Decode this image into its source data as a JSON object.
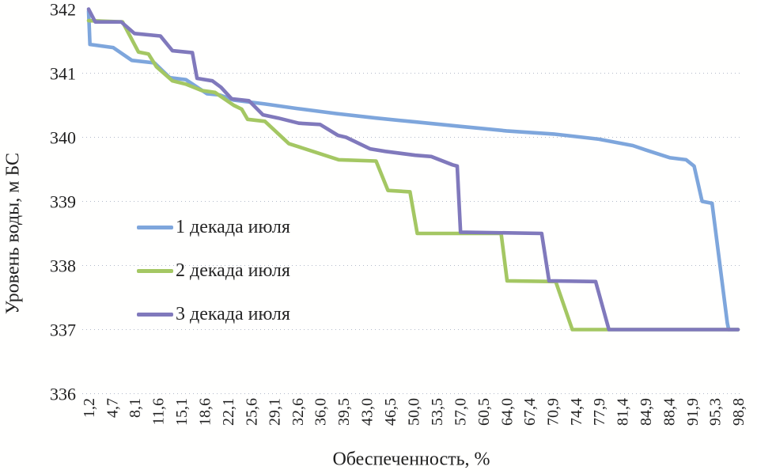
{
  "chart_data": {
    "type": "line",
    "title": "",
    "xlabel": "Обеспеченность, %",
    "ylabel": "Уровень воды, м БС",
    "x_range": [
      1.2,
      98.8
    ],
    "y_range": [
      336,
      342
    ],
    "y_ticks": [
      342,
      341,
      340,
      339,
      338,
      337,
      336
    ],
    "y_gridlines": [
      341,
      340,
      339,
      338,
      337,
      336
    ],
    "grid": "horizontal dotted",
    "legend_position": "inside-left",
    "x_tick_labels": [
      "1,2",
      "4,7",
      "8,1",
      "11,6",
      "15,1",
      "18,6",
      "22,1",
      "25,6",
      "29,1",
      "32,6",
      "36,0",
      "39,5",
      "43,0",
      "46,5",
      "50,0",
      "53,5",
      "57,0",
      "60,5",
      "64,0",
      "67,4",
      "70,9",
      "74,4",
      "77,9",
      "81,4",
      "84,9",
      "88,4",
      "91,9",
      "95,3",
      "98,8"
    ],
    "x_tick_values": [
      1.2,
      4.7,
      8.1,
      11.6,
      15.1,
      18.6,
      22.1,
      25.6,
      29.1,
      32.6,
      36.0,
      39.5,
      43.0,
      46.5,
      50.0,
      53.5,
      57.0,
      60.5,
      64.0,
      67.4,
      70.9,
      74.4,
      77.9,
      81.4,
      84.9,
      88.4,
      91.9,
      95.3,
      98.8
    ],
    "series": [
      {
        "name": "1 декада июля",
        "color": "#7EA6DC",
        "points": [
          [
            1.2,
            341.97
          ],
          [
            1.4,
            341.45
          ],
          [
            4.9,
            341.4
          ],
          [
            7.7,
            341.2
          ],
          [
            11.1,
            341.16
          ],
          [
            13.4,
            340.93
          ],
          [
            15.8,
            340.9
          ],
          [
            19.0,
            340.68
          ],
          [
            20.9,
            340.66
          ],
          [
            23.0,
            340.58
          ],
          [
            27.7,
            340.52
          ],
          [
            32.5,
            340.45
          ],
          [
            38.4,
            340.37
          ],
          [
            44.4,
            340.3
          ],
          [
            50.3,
            340.24
          ],
          [
            57.0,
            340.17
          ],
          [
            64.0,
            340.1
          ],
          [
            71.1,
            340.05
          ],
          [
            77.9,
            339.97
          ],
          [
            83.0,
            339.87
          ],
          [
            85.0,
            339.8
          ],
          [
            88.6,
            339.68
          ],
          [
            91.0,
            339.65
          ],
          [
            92.2,
            339.55
          ],
          [
            93.4,
            339.0
          ],
          [
            94.9,
            338.97
          ],
          [
            97.2,
            337.1
          ],
          [
            97.4,
            337.0
          ],
          [
            98.8,
            337.0
          ]
        ]
      },
      {
        "name": "2 декада июля",
        "color": "#A4C763",
        "points": [
          [
            1.2,
            341.82
          ],
          [
            6.3,
            341.8
          ],
          [
            8.7,
            341.33
          ],
          [
            10.2,
            341.3
          ],
          [
            11.4,
            341.1
          ],
          [
            13.8,
            340.88
          ],
          [
            15.8,
            340.83
          ],
          [
            18.2,
            340.73
          ],
          [
            20.2,
            340.7
          ],
          [
            23.0,
            340.5
          ],
          [
            24.2,
            340.44
          ],
          [
            25.1,
            340.28
          ],
          [
            27.7,
            340.25
          ],
          [
            31.3,
            339.9
          ],
          [
            32.8,
            339.85
          ],
          [
            34.9,
            339.78
          ],
          [
            38.8,
            339.65
          ],
          [
            44.4,
            339.63
          ],
          [
            46.2,
            339.17
          ],
          [
            49.5,
            339.15
          ],
          [
            50.6,
            338.5
          ],
          [
            63.2,
            338.5
          ],
          [
            64.1,
            337.76
          ],
          [
            71.4,
            337.75
          ],
          [
            73.9,
            337.0
          ],
          [
            98.8,
            337.0
          ]
        ]
      },
      {
        "name": "3 декада июля",
        "color": "#8079BC",
        "points": [
          [
            1.2,
            342.0
          ],
          [
            2.2,
            341.8
          ],
          [
            6.1,
            341.8
          ],
          [
            8.1,
            341.62
          ],
          [
            12.0,
            341.58
          ],
          [
            13.8,
            341.35
          ],
          [
            16.8,
            341.32
          ],
          [
            17.5,
            340.92
          ],
          [
            19.8,
            340.88
          ],
          [
            21.1,
            340.78
          ],
          [
            22.7,
            340.6
          ],
          [
            25.3,
            340.57
          ],
          [
            27.4,
            340.35
          ],
          [
            29.7,
            340.3
          ],
          [
            32.8,
            340.22
          ],
          [
            36.0,
            340.2
          ],
          [
            38.7,
            340.03
          ],
          [
            39.9,
            340.0
          ],
          [
            43.5,
            339.82
          ],
          [
            45.8,
            339.78
          ],
          [
            50.3,
            339.72
          ],
          [
            52.7,
            339.7
          ],
          [
            55.9,
            339.57
          ],
          [
            56.6,
            339.55
          ],
          [
            57.1,
            338.52
          ],
          [
            69.3,
            338.5
          ],
          [
            70.4,
            337.76
          ],
          [
            77.4,
            337.75
          ],
          [
            79.4,
            337.0
          ],
          [
            98.8,
            337.0
          ]
        ]
      }
    ]
  }
}
